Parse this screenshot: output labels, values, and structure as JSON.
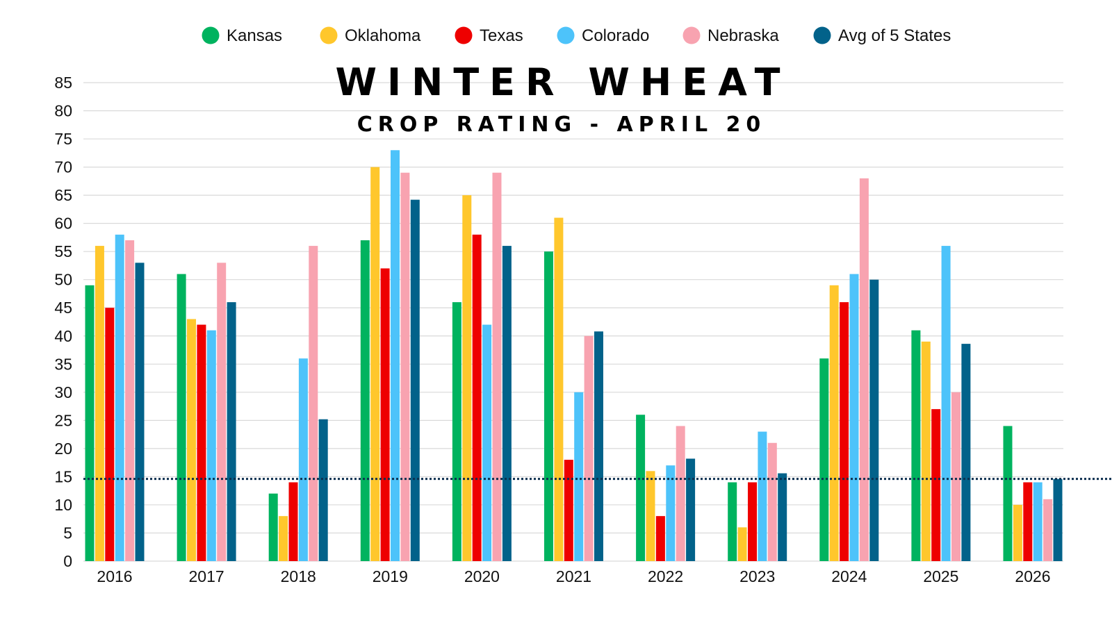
{
  "chart_data": {
    "type": "bar",
    "title": "WINTER WHEAT",
    "subtitle": "CROP RATING - APRIL 20",
    "xlabel": "",
    "ylabel": "",
    "ylim": [
      0,
      85
    ],
    "ytick_step": 5,
    "grid": true,
    "legend_position": "top-center",
    "categories": [
      "2016",
      "2017",
      "2018",
      "2019",
      "2020",
      "2021",
      "2022",
      "2023",
      "2024",
      "2025",
      "2026"
    ],
    "series": [
      {
        "name": "Kansas",
        "color": "#00b35f",
        "values": [
          49,
          51,
          12,
          57,
          46,
          55,
          26,
          14,
          36,
          41,
          24
        ]
      },
      {
        "name": "Oklahoma",
        "color": "#ffc72c",
        "values": [
          56,
          43,
          8,
          70,
          65,
          61,
          16,
          6,
          49,
          39,
          10
        ]
      },
      {
        "name": "Texas",
        "color": "#ee0000",
        "values": [
          45,
          42,
          14,
          52,
          58,
          18,
          8,
          14,
          46,
          27,
          14
        ]
      },
      {
        "name": "Colorado",
        "color": "#4dc3fa",
        "values": [
          58,
          41,
          36,
          73,
          42,
          30,
          17,
          23,
          51,
          56,
          14
        ]
      },
      {
        "name": "Nebraska",
        "color": "#f8a3b0",
        "values": [
          57,
          53,
          56,
          69,
          69,
          40,
          24,
          21,
          68,
          30,
          11
        ]
      },
      {
        "name": "Avg of 5 States",
        "color": "#02628a",
        "values": [
          53,
          46,
          25.2,
          64.2,
          56,
          40.8,
          18.2,
          15.6,
          50,
          38.6,
          14.6
        ]
      }
    ],
    "reference_line": {
      "value": 14.6,
      "style": "dotted",
      "color": "#0c2f4f"
    }
  }
}
